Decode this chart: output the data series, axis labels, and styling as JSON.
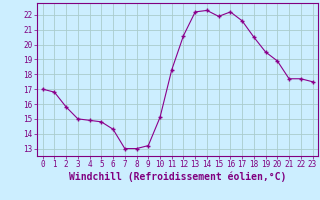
{
  "x": [
    0,
    1,
    2,
    3,
    4,
    5,
    6,
    7,
    8,
    9,
    10,
    11,
    12,
    13,
    14,
    15,
    16,
    17,
    18,
    19,
    20,
    21,
    22,
    23
  ],
  "y": [
    17.0,
    16.8,
    15.8,
    15.0,
    14.9,
    14.8,
    14.3,
    13.0,
    13.0,
    13.2,
    15.1,
    18.3,
    20.6,
    22.2,
    22.3,
    21.9,
    22.2,
    21.6,
    20.5,
    19.5,
    18.9,
    17.7,
    17.7,
    17.5
  ],
  "line_color": "#8B008B",
  "marker_color": "#8B008B",
  "bg_color": "#cceeff",
  "grid_color": "#aacccc",
  "xlabel": "Windchill (Refroidissement éolien,°C)",
  "xlabel_fontsize": 7,
  "ylabel_ticks": [
    13,
    14,
    15,
    16,
    17,
    18,
    19,
    20,
    21,
    22
  ],
  "xlim": [
    -0.5,
    23.5
  ],
  "ylim": [
    12.5,
    22.8
  ],
  "xticks": [
    0,
    1,
    2,
    3,
    4,
    5,
    6,
    7,
    8,
    9,
    10,
    11,
    12,
    13,
    14,
    15,
    16,
    17,
    18,
    19,
    20,
    21,
    22,
    23
  ],
  "tick_fontsize": 5.5,
  "figsize": [
    3.2,
    2.0
  ],
  "dpi": 100
}
